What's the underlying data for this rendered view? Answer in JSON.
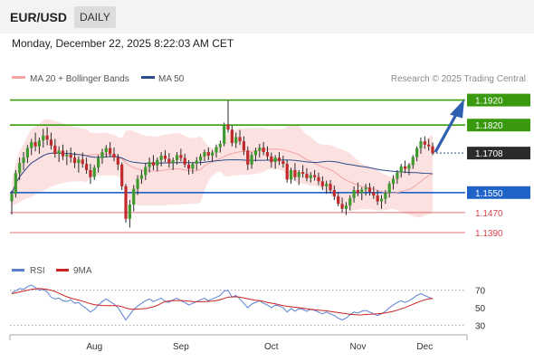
{
  "header": {
    "symbol": "EUR/USD",
    "timeframe": "DAILY",
    "datetime": "Monday, December 22, 2025 8:22:03 AM CET"
  },
  "legend": [
    {
      "label": "MA 20 + Bollinger Bands",
      "color": "#f3a3a3"
    },
    {
      "label": "MA 50",
      "color": "#2c4d87"
    }
  ],
  "credit": "Research © 2025 Trading Central",
  "rsi_legend": [
    {
      "label": "RSI",
      "color": "#5b7fd4"
    },
    {
      "label": "9MA",
      "color": "#cc2222"
    }
  ],
  "chart_data": [
    {
      "type": "candlestick",
      "title": "",
      "x_ticks": [
        "Aug",
        "Sep",
        "Oct",
        "Nov",
        "Dec"
      ],
      "y_range": [
        1.1285,
        1.198
      ],
      "current_price": 1.1708,
      "levels": [
        {
          "label": "1.1920",
          "value": 1.192,
          "color": "#3a9a0f",
          "kind": "resistance"
        },
        {
          "label": "1.1820",
          "value": 1.182,
          "color": "#3a9a0f",
          "kind": "resistance"
        },
        {
          "label": "1.1708",
          "value": 1.1708,
          "color": "#2b2b2b",
          "kind": "last"
        },
        {
          "label": "1.1550",
          "value": 1.155,
          "color": "#1f63c9",
          "kind": "pivot"
        },
        {
          "label": "1.1470",
          "value": 1.147,
          "color": "#d6434a",
          "kind": "support"
        },
        {
          "label": "1.1390",
          "value": 1.139,
          "color": "#d6434a",
          "kind": "support"
        }
      ],
      "ohlc": [
        [
          1.1515,
          1.1558,
          1.1462,
          1.1545
        ],
        [
          1.1545,
          1.164,
          1.153,
          1.1628
        ],
        [
          1.1628,
          1.169,
          1.16,
          1.1668
        ],
        [
          1.1668,
          1.1712,
          1.164,
          1.169
        ],
        [
          1.169,
          1.174,
          1.1668,
          1.1728
        ],
        [
          1.1728,
          1.1765,
          1.17,
          1.1752
        ],
        [
          1.1752,
          1.179,
          1.1715,
          1.1735
        ],
        [
          1.1735,
          1.177,
          1.1705,
          1.1758
        ],
        [
          1.1758,
          1.1805,
          1.173,
          1.1778
        ],
        [
          1.1778,
          1.1812,
          1.174,
          1.1762
        ],
        [
          1.1762,
          1.179,
          1.1722,
          1.1738
        ],
        [
          1.1738,
          1.1765,
          1.169,
          1.1705
        ],
        [
          1.1705,
          1.1735,
          1.1672,
          1.1718
        ],
        [
          1.1718,
          1.1742,
          1.168,
          1.1695
        ],
        [
          1.1695,
          1.172,
          1.166,
          1.1702
        ],
        [
          1.1702,
          1.173,
          1.167,
          1.169
        ],
        [
          1.169,
          1.1712,
          1.1648,
          1.1668
        ],
        [
          1.1668,
          1.1695,
          1.163,
          1.1682
        ],
        [
          1.1682,
          1.171,
          1.165,
          1.1665
        ],
        [
          1.1665,
          1.169,
          1.1625,
          1.164
        ],
        [
          1.164,
          1.1665,
          1.1585,
          1.1612
        ],
        [
          1.1612,
          1.166,
          1.16,
          1.165
        ],
        [
          1.165,
          1.17,
          1.163,
          1.1688
        ],
        [
          1.1688,
          1.1725,
          1.1665,
          1.1712
        ],
        [
          1.1712,
          1.174,
          1.169,
          1.1728
        ],
        [
          1.1728,
          1.1752,
          1.1695,
          1.1705
        ],
        [
          1.1705,
          1.173,
          1.1675,
          1.169
        ],
        [
          1.169,
          1.1705,
          1.164,
          1.1662
        ],
        [
          1.1662,
          1.167,
          1.156,
          1.1575
        ],
        [
          1.1575,
          1.1585,
          1.143,
          1.1445
        ],
        [
          1.1445,
          1.152,
          1.141,
          1.1502
        ],
        [
          1.1502,
          1.158,
          1.1475,
          1.1565
        ],
        [
          1.1565,
          1.162,
          1.154,
          1.1605
        ],
        [
          1.1605,
          1.164,
          1.1585,
          1.162
        ],
        [
          1.162,
          1.1668,
          1.16,
          1.1652
        ],
        [
          1.1652,
          1.169,
          1.163,
          1.1672
        ],
        [
          1.1672,
          1.17,
          1.164,
          1.1658
        ],
        [
          1.1658,
          1.169,
          1.1635,
          1.168
        ],
        [
          1.168,
          1.1712,
          1.1655,
          1.1698
        ],
        [
          1.1698,
          1.172,
          1.1672,
          1.1685
        ],
        [
          1.1685,
          1.1708,
          1.165,
          1.1668
        ],
        [
          1.1668,
          1.169,
          1.164,
          1.168
        ],
        [
          1.168,
          1.1712,
          1.1662,
          1.17
        ],
        [
          1.17,
          1.1725,
          1.1675,
          1.1688
        ],
        [
          1.1688,
          1.1705,
          1.165,
          1.1662
        ],
        [
          1.1662,
          1.168,
          1.1622,
          1.1645
        ],
        [
          1.1645,
          1.1672,
          1.1625,
          1.1665
        ],
        [
          1.1665,
          1.1692,
          1.164,
          1.1678
        ],
        [
          1.1678,
          1.1705,
          1.166,
          1.1695
        ],
        [
          1.1695,
          1.1722,
          1.1675,
          1.1712
        ],
        [
          1.1712,
          1.173,
          1.168,
          1.1698
        ],
        [
          1.1698,
          1.172,
          1.1672,
          1.171
        ],
        [
          1.171,
          1.1742,
          1.169,
          1.1732
        ],
        [
          1.1732,
          1.1758,
          1.171,
          1.1745
        ],
        [
          1.1745,
          1.183,
          1.1735,
          1.1822
        ],
        [
          1.1822,
          1.1918,
          1.179,
          1.1802
        ],
        [
          1.1802,
          1.1818,
          1.1735,
          1.1748
        ],
        [
          1.1748,
          1.179,
          1.1728,
          1.1772
        ],
        [
          1.1772,
          1.18,
          1.174,
          1.1755
        ],
        [
          1.1755,
          1.1775,
          1.17,
          1.1718
        ],
        [
          1.1718,
          1.1735,
          1.164,
          1.1662
        ],
        [
          1.1662,
          1.1712,
          1.1645,
          1.17
        ],
        [
          1.17,
          1.173,
          1.1675,
          1.1718
        ],
        [
          1.1718,
          1.1745,
          1.169,
          1.173
        ],
        [
          1.173,
          1.1752,
          1.17,
          1.1712
        ],
        [
          1.1712,
          1.1735,
          1.168,
          1.1695
        ],
        [
          1.1695,
          1.171,
          1.165,
          1.1672
        ],
        [
          1.1672,
          1.17,
          1.1645,
          1.169
        ],
        [
          1.169,
          1.1712,
          1.166,
          1.1676
        ],
        [
          1.1676,
          1.1698,
          1.165,
          1.1665
        ],
        [
          1.1665,
          1.168,
          1.159,
          1.1602
        ],
        [
          1.1602,
          1.165,
          1.1585,
          1.164
        ],
        [
          1.164,
          1.1668,
          1.1598,
          1.1612
        ],
        [
          1.1612,
          1.164,
          1.158,
          1.1632
        ],
        [
          1.1632,
          1.166,
          1.161,
          1.1625
        ],
        [
          1.1625,
          1.1648,
          1.1595,
          1.1608
        ],
        [
          1.1608,
          1.1632,
          1.159,
          1.162
        ],
        [
          1.162,
          1.164,
          1.1598,
          1.1612
        ],
        [
          1.1612,
          1.163,
          1.158,
          1.1595
        ],
        [
          1.1595,
          1.1615,
          1.156,
          1.1575
        ],
        [
          1.1575,
          1.1598,
          1.1545,
          1.1585
        ],
        [
          1.1585,
          1.16,
          1.1548,
          1.156
        ],
        [
          1.156,
          1.1578,
          1.152,
          1.1535
        ],
        [
          1.1535,
          1.1552,
          1.1495,
          1.1505
        ],
        [
          1.1505,
          1.153,
          1.147,
          1.1485
        ],
        [
          1.1485,
          1.1512,
          1.146,
          1.1498
        ],
        [
          1.1498,
          1.154,
          1.1478,
          1.1528
        ],
        [
          1.1528,
          1.1575,
          1.151,
          1.156
        ],
        [
          1.156,
          1.159,
          1.1535,
          1.1548
        ],
        [
          1.1548,
          1.1572,
          1.152,
          1.1562
        ],
        [
          1.1562,
          1.1585,
          1.1538,
          1.157
        ],
        [
          1.157,
          1.1588,
          1.1538,
          1.1552
        ],
        [
          1.1552,
          1.1575,
          1.1525,
          1.1538
        ],
        [
          1.1538,
          1.156,
          1.15,
          1.1515
        ],
        [
          1.1515,
          1.154,
          1.1485,
          1.1525
        ],
        [
          1.1525,
          1.156,
          1.1505,
          1.1548
        ],
        [
          1.1548,
          1.1595,
          1.153,
          1.1585
        ],
        [
          1.1585,
          1.162,
          1.1562,
          1.1605
        ],
        [
          1.1605,
          1.164,
          1.1585,
          1.163
        ],
        [
          1.163,
          1.1665,
          1.161,
          1.1655
        ],
        [
          1.1655,
          1.1678,
          1.1628,
          1.1645
        ],
        [
          1.1645,
          1.1668,
          1.162,
          1.166
        ],
        [
          1.166,
          1.17,
          1.1645,
          1.1692
        ],
        [
          1.1692,
          1.1735,
          1.1675,
          1.1728
        ],
        [
          1.1728,
          1.177,
          1.1705,
          1.1755
        ],
        [
          1.1755,
          1.1775,
          1.1725,
          1.1742
        ],
        [
          1.1742,
          1.1765,
          1.1718,
          1.1735
        ],
        [
          1.1735,
          1.175,
          1.17,
          1.1708
        ]
      ],
      "series": [
        {
          "name": "MA 20",
          "values": []
        },
        {
          "name": "MA 50",
          "values": []
        }
      ]
    },
    {
      "type": "line",
      "title": "",
      "y_ticks": [
        70,
        50,
        30
      ],
      "ylim": [
        20,
        80
      ],
      "series": [
        {
          "name": "RSI",
          "values": [
            67,
            69,
            72,
            71,
            74,
            76,
            73,
            70,
            71,
            68,
            62,
            60,
            61,
            58,
            57,
            59,
            55,
            56,
            52,
            49,
            45,
            48,
            53,
            57,
            60,
            57,
            54,
            50,
            43,
            36,
            42,
            48,
            52,
            55,
            58,
            60,
            57,
            59,
            61,
            57,
            56,
            59,
            61,
            58,
            56,
            53,
            55,
            57,
            59,
            61,
            58,
            60,
            62,
            64,
            69,
            70,
            62,
            64,
            60,
            55,
            50,
            54,
            56,
            58,
            55,
            53,
            50,
            53,
            52,
            50,
            45,
            49,
            46,
            49,
            48,
            46,
            48,
            47,
            45,
            43,
            45,
            43,
            41,
            38,
            36,
            38,
            42,
            45,
            44,
            46,
            47,
            45,
            43,
            41,
            43,
            46,
            50,
            53,
            56,
            58,
            56,
            58,
            61,
            64,
            66,
            64,
            62,
            60
          ]
        },
        {
          "name": "9MA",
          "values": [
            66,
            67,
            68,
            69,
            70,
            71,
            71.5,
            72,
            71.5,
            71,
            70,
            68.5,
            66.5,
            64.5,
            62.5,
            61,
            59.8,
            58.7,
            57.5,
            56,
            54.5,
            53.5,
            53,
            52.5,
            52.4,
            52.4,
            52.4,
            52.2,
            51.2,
            49.6,
            48.5,
            48,
            48.4,
            48.8,
            49,
            50,
            51,
            52.5,
            55,
            57,
            57.8,
            58,
            58.2,
            58.2,
            58,
            57.6,
            57,
            56.8,
            56.8,
            57,
            57.2,
            57.5,
            58.2,
            59.2,
            60.7,
            62,
            62.4,
            62.5,
            62,
            61.2,
            60.2,
            59.3,
            58.6,
            58,
            57.2,
            56,
            55.2,
            54.3,
            53.4,
            52.4,
            51.6,
            51,
            50.5,
            50,
            49.5,
            48.8,
            48.2,
            47.7,
            47.3,
            46.8,
            46.4,
            45.8,
            45.1,
            44.4,
            43.8,
            43.2,
            42.6,
            42.1,
            41.7,
            41.8,
            42.2,
            42.5,
            42.8,
            43.1,
            43.5,
            44.1,
            44.9,
            45.9,
            47.2,
            48.8,
            50.2,
            52,
            53.9,
            55.8,
            57.6,
            59,
            60.1,
            60.8
          ]
        }
      ]
    }
  ]
}
